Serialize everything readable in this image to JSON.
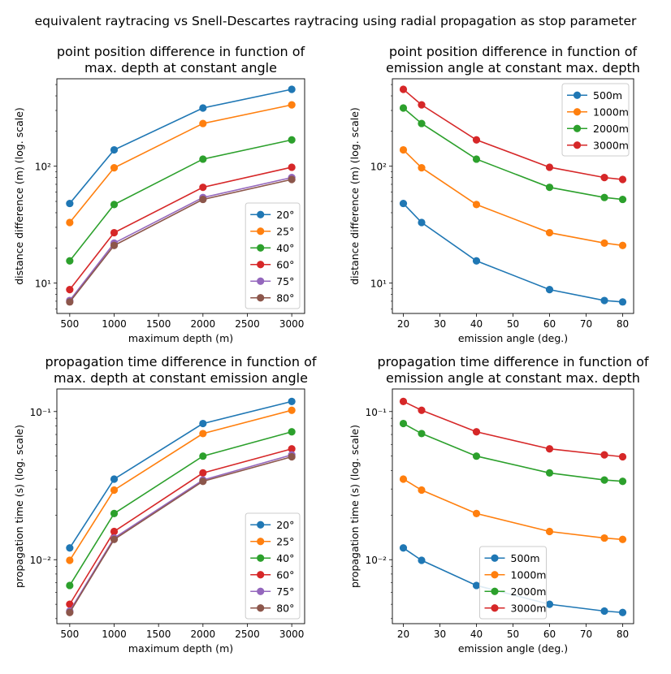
{
  "suptitle": "equivalent raytracing vs Snell-Descartes raytracing using radial propagation as stop parameter",
  "chart_data": [
    {
      "type": "line",
      "title": "point position difference in function of\nmax. depth at constant angle",
      "xlabel": "maximum depth (m)",
      "ylabel": "distance difference (m) (log. scale)",
      "yscale": "log",
      "xlim": [
        355,
        3145
      ],
      "ylim": [
        5.5,
        560
      ],
      "xticks": [
        500,
        1000,
        1500,
        2000,
        2500,
        3000
      ],
      "xtick_labels": [
        "500",
        "1000",
        "1500",
        "2000",
        "2500",
        "3000"
      ],
      "yticks_major": [
        10,
        100
      ],
      "ytick_labels": [
        "10¹",
        "10²"
      ],
      "legend_loc": "lower-right",
      "x": [
        500,
        1000,
        2000,
        3000
      ],
      "series": [
        {
          "name": "20°",
          "color": "#1f77b4",
          "values": [
            48,
            138,
            315,
            455
          ]
        },
        {
          "name": "25°",
          "color": "#ff7f0e",
          "values": [
            33,
            97,
            232,
            335
          ]
        },
        {
          "name": "40°",
          "color": "#2ca02c",
          "values": [
            15.5,
            47,
            115,
            168
          ]
        },
        {
          "name": "60°",
          "color": "#d62728",
          "values": [
            8.8,
            27,
            66,
            98
          ]
        },
        {
          "name": "75°",
          "color": "#9467bd",
          "values": [
            7.1,
            22,
            54,
            80
          ]
        },
        {
          "name": "80°",
          "color": "#8c564b",
          "values": [
            6.9,
            21,
            52,
            77
          ]
        }
      ]
    },
    {
      "type": "line",
      "title": "point position difference in function of\nemission angle at constant max. depth",
      "xlabel": "emission angle (deg.)",
      "ylabel": "distance difference (m) (log. scale)",
      "yscale": "log",
      "xlim": [
        17,
        83
      ],
      "ylim": [
        5.5,
        560
      ],
      "xticks": [
        20,
        30,
        40,
        50,
        60,
        70,
        80
      ],
      "xtick_labels": [
        "20",
        "30",
        "40",
        "50",
        "60",
        "70",
        "80"
      ],
      "yticks_major": [
        10,
        100
      ],
      "ytick_labels": [
        "10¹",
        "10²"
      ],
      "legend_loc": "upper-right",
      "x": [
        20,
        25,
        40,
        60,
        75,
        80
      ],
      "series": [
        {
          "name": "500m",
          "color": "#1f77b4",
          "values": [
            48,
            33,
            15.5,
            8.8,
            7.1,
            6.9
          ]
        },
        {
          "name": "1000m",
          "color": "#ff7f0e",
          "values": [
            138,
            97,
            47,
            27,
            22,
            21
          ]
        },
        {
          "name": "2000m",
          "color": "#2ca02c",
          "values": [
            315,
            232,
            115,
            66,
            54,
            52
          ]
        },
        {
          "name": "3000m",
          "color": "#d62728",
          "values": [
            455,
            335,
            168,
            98,
            80,
            77
          ]
        }
      ]
    },
    {
      "type": "line",
      "title": "propagation time difference in function of\nmax. depth at constant emission angle",
      "xlabel": "maximum depth (m)",
      "ylabel": "propagation time (s) (log. scale)",
      "yscale": "log",
      "xlim": [
        355,
        3145
      ],
      "ylim": [
        0.0037,
        0.142
      ],
      "xticks": [
        500,
        1000,
        1500,
        2000,
        2500,
        3000
      ],
      "xtick_labels": [
        "500",
        "1000",
        "1500",
        "2000",
        "2500",
        "3000"
      ],
      "yticks_major": [
        0.01,
        0.1
      ],
      "ytick_labels": [
        "10⁻²",
        "10⁻¹"
      ],
      "legend_loc": "lower-right",
      "x": [
        500,
        1000,
        2000,
        3000
      ],
      "series": [
        {
          "name": "20°",
          "color": "#1f77b4",
          "values": [
            0.012,
            0.035,
            0.083,
            0.117
          ]
        },
        {
          "name": "25°",
          "color": "#ff7f0e",
          "values": [
            0.0099,
            0.0295,
            0.071,
            0.102
          ]
        },
        {
          "name": "40°",
          "color": "#2ca02c",
          "values": [
            0.0067,
            0.0205,
            0.05,
            0.073
          ]
        },
        {
          "name": "60°",
          "color": "#d62728",
          "values": [
            0.005,
            0.0155,
            0.0385,
            0.056
          ]
        },
        {
          "name": "75°",
          "color": "#9467bd",
          "values": [
            0.0045,
            0.014,
            0.0345,
            0.051
          ]
        },
        {
          "name": "80°",
          "color": "#8c564b",
          "values": [
            0.0044,
            0.0137,
            0.0338,
            0.0495
          ]
        }
      ]
    },
    {
      "type": "line",
      "title": "propagation time difference in function of\nemission angle at constant max. depth",
      "xlabel": "emission angle (deg.)",
      "ylabel": "propagation time (s) (log. scale)",
      "yscale": "log",
      "xlim": [
        17,
        83
      ],
      "ylim": [
        0.0037,
        0.142
      ],
      "xticks": [
        20,
        30,
        40,
        50,
        60,
        70,
        80
      ],
      "xtick_labels": [
        "20",
        "30",
        "40",
        "50",
        "60",
        "70",
        "80"
      ],
      "yticks_major": [
        0.01,
        0.1
      ],
      "ytick_labels": [
        "10⁻²",
        "10⁻¹"
      ],
      "legend_loc": "lower-center",
      "x": [
        20,
        25,
        40,
        60,
        75,
        80
      ],
      "series": [
        {
          "name": "500m",
          "color": "#1f77b4",
          "values": [
            0.012,
            0.0099,
            0.0067,
            0.005,
            0.0045,
            0.0044
          ]
        },
        {
          "name": "1000m",
          "color": "#ff7f0e",
          "values": [
            0.035,
            0.0295,
            0.0205,
            0.0155,
            0.014,
            0.0137
          ]
        },
        {
          "name": "2000m",
          "color": "#2ca02c",
          "values": [
            0.083,
            0.071,
            0.05,
            0.0385,
            0.0345,
            0.0338
          ]
        },
        {
          "name": "3000m",
          "color": "#d62728",
          "values": [
            0.117,
            0.102,
            0.073,
            0.056,
            0.051,
            0.0495
          ]
        }
      ]
    }
  ]
}
